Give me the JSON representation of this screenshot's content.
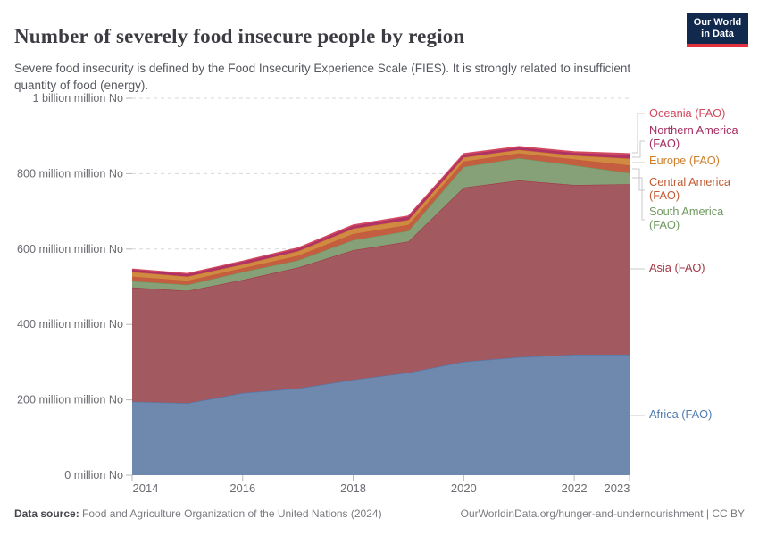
{
  "header": {
    "title": "Number of severely food insecure people by region",
    "subtitle": "Severe food insecurity is defined by the Food Insecurity Experience Scale (FIES). It is strongly related to insufficient quantity of food (energy).",
    "logo_line1": "Our World",
    "logo_line2": "in Data",
    "logo_bg": "#12294e",
    "logo_accent": "#e0313c"
  },
  "footer": {
    "datasource_label": "Data source:",
    "datasource_text": " Food and Agriculture Organization of the United Nations (2024)",
    "link_text": "OurWorldinData.org/hunger-and-undernourishment | CC BY"
  },
  "chart_data": {
    "type": "area",
    "stacked": true,
    "unit": "million people",
    "x": [
      2014,
      2015,
      2016,
      2017,
      2018,
      2019,
      2020,
      2021,
      2022,
      2023
    ],
    "x_range": [
      2014,
      2023
    ],
    "y_range_millions": [
      0,
      1000
    ],
    "grid": "dashed",
    "legend_position": "right",
    "series": [
      {
        "name": "africa",
        "legend_label": "Africa (FAO)",
        "fill": "#6e88ae",
        "line": "#4e7ab0",
        "values": [
          195,
          191,
          218,
          230,
          253,
          272,
          301,
          313,
          320,
          320
        ]
      },
      {
        "name": "asia",
        "legend_label": "Asia (FAO)",
        "fill": "#a25a60",
        "line": "#a23746",
        "values": [
          303,
          298,
          300,
          321,
          344,
          348,
          462,
          469,
          450,
          452
        ]
      },
      {
        "name": "south-america",
        "legend_label": "South America (FAO)",
        "fill": "#86a178",
        "line": "#6f9961",
        "values": [
          17,
          16,
          21,
          19,
          27,
          28,
          55,
          59,
          52,
          30
        ]
      },
      {
        "name": "central-america",
        "legend_label": "Central America (FAO)",
        "fill": "#c45e40",
        "line": "#c35b32",
        "values": [
          12,
          11,
          10,
          12,
          16,
          16,
          14,
          13,
          16,
          20
        ]
      },
      {
        "name": "europe",
        "legend_label": "Europe (FAO)",
        "fill": "#d08a42",
        "line": "#cd7d29",
        "values": [
          12,
          11,
          10,
          12,
          14,
          13,
          11,
          9,
          10,
          18
        ]
      },
      {
        "name": "northern-america",
        "legend_label": "Northern America (FAO)",
        "fill": "#b23466",
        "line": "#a52c60",
        "values": [
          6,
          6,
          7,
          6,
          7,
          8,
          7,
          6,
          7,
          9
        ]
      },
      {
        "name": "oceania",
        "legend_label": "Oceania (FAO)",
        "fill": "#d24b64",
        "line": "#d2495f",
        "values": [
          2,
          2,
          2,
          3,
          3,
          3,
          3,
          3,
          3,
          4
        ]
      }
    ],
    "x_axis": {
      "ticks": [
        {
          "value": 2014,
          "label": "2014"
        },
        {
          "value": 2016,
          "label": "2016"
        },
        {
          "value": 2018,
          "label": "2018"
        },
        {
          "value": 2020,
          "label": "2020"
        },
        {
          "value": 2022,
          "label": "2022"
        },
        {
          "value": 2023,
          "label": "2023"
        }
      ]
    },
    "y_axis": {
      "ticks": [
        {
          "value": 0,
          "label": "0 million No"
        },
        {
          "value": 200,
          "label": "200 million million No"
        },
        {
          "value": 400,
          "label": "400 million million No"
        },
        {
          "value": 600,
          "label": "600 million million No"
        },
        {
          "value": 800,
          "label": "800 million million No"
        },
        {
          "value": 1000,
          "label": "1 billion million No"
        }
      ]
    }
  }
}
